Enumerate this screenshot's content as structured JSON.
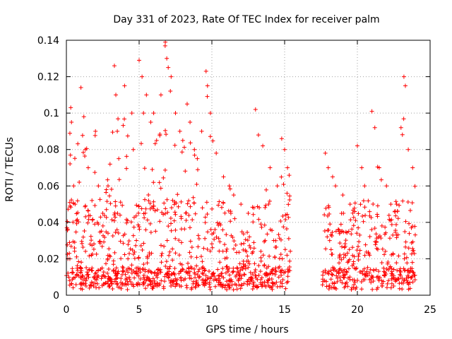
{
  "chart_data": {
    "type": "scatter",
    "title": "Day 331 of 2023, Rate Of TEC Index for receiver palm",
    "xlabel": "GPS time / hours",
    "ylabel": "ROTI / TECUs",
    "xlim": [
      0,
      25
    ],
    "ylim": [
      0,
      0.14
    ],
    "xticks": [
      0,
      5,
      10,
      15,
      20,
      25
    ],
    "xtick_labels": [
      "0",
      "5",
      "10",
      "15",
      "20",
      "25"
    ],
    "yticks": [
      0,
      0.02,
      0.04,
      0.06,
      0.08,
      0.1,
      0.12,
      0.14
    ],
    "ytick_labels": [
      "0",
      "0.02",
      "0.04",
      "0.06",
      "0.08",
      "0.1",
      "0.12",
      "0.14"
    ],
    "grid": true,
    "marker": "+",
    "color": "#ff0000",
    "data_gap_hours": [
      15.4,
      17.6
    ],
    "series": [
      {
        "name": "ROTI",
        "x": [
          0.1,
          0.3,
          0.35,
          0.5,
          0.6,
          1.0,
          1.2,
          1.3,
          1.5,
          2.0,
          2.2,
          2.5,
          3.0,
          3.3,
          3.4,
          3.5,
          3.6,
          4.0,
          4.5,
          4.6,
          5.0,
          5.2,
          5.3,
          5.5,
          5.8,
          6.0,
          6.2,
          6.5,
          6.8,
          6.9,
          7.0,
          7.2,
          7.5,
          7.8,
          8.0,
          8.3,
          8.5,
          8.8,
          9.0,
          9.3,
          9.6,
          9.7,
          9.9,
          10.3,
          10.8,
          11.2,
          11.5,
          12.0,
          12.5,
          13.0,
          13.2,
          13.5,
          14.0,
          14.5,
          14.8,
          15.0,
          15.2,
          17.8,
          18.0,
          18.3,
          18.5,
          19.0,
          19.5,
          20.0,
          20.3,
          20.5,
          21.0,
          21.2,
          21.5,
          22.0,
          22.3,
          22.7,
          23.0,
          23.2,
          23.3,
          23.5,
          23.8
        ],
        "y": [
          0.02,
          0.103,
          0.095,
          0.06,
          0.05,
          0.114,
          0.098,
          0.08,
          0.07,
          0.09,
          0.06,
          0.045,
          0.072,
          0.126,
          0.11,
          0.09,
          0.075,
          0.115,
          0.1,
          0.08,
          0.129,
          0.12,
          0.1,
          0.11,
          0.095,
          0.1,
          0.085,
          0.11,
          0.139,
          0.13,
          0.125,
          0.12,
          0.1,
          0.09,
          0.085,
          0.105,
          0.095,
          0.08,
          0.075,
          0.09,
          0.123,
          0.115,
          0.1,
          0.078,
          0.065,
          0.06,
          0.055,
          0.05,
          0.045,
          0.102,
          0.088,
          0.082,
          0.07,
          0.06,
          0.086,
          0.08,
          0.07,
          0.078,
          0.07,
          0.065,
          0.06,
          0.055,
          0.05,
          0.082,
          0.07,
          0.06,
          0.101,
          0.092,
          0.07,
          0.06,
          0.05,
          0.05,
          0.092,
          0.12,
          0.115,
          0.08,
          0.07
        ]
      }
    ]
  }
}
